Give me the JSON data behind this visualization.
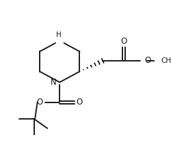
{
  "background_color": "#ffffff",
  "line_color": "#1a1a1a",
  "line_width": 1.4,
  "figsize": [
    2.5,
    2.43
  ],
  "dpi": 100,
  "xlim": [
    0,
    10
  ],
  "ylim": [
    0,
    10
  ]
}
